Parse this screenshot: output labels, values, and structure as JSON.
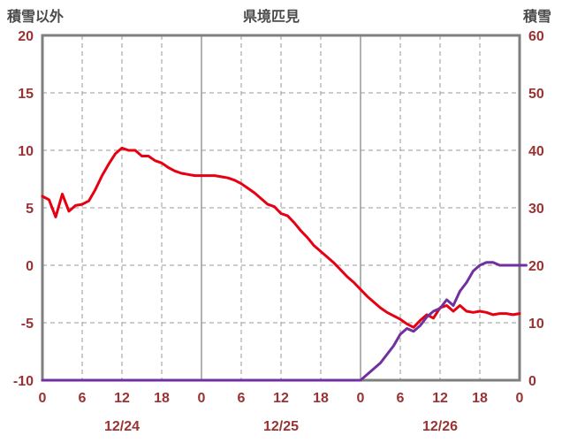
{
  "header": {
    "left_axis_title": "積雪以外",
    "chart_title": "県境匹見",
    "right_axis_title": "積雪"
  },
  "chart_data": {
    "type": "line",
    "title": "県境匹見",
    "x_hours_max": 72,
    "x_tick_step": 6,
    "x_tick_labels": [
      "0",
      "6",
      "12",
      "18",
      "0",
      "6",
      "12",
      "18",
      "0",
      "6",
      "12",
      "18",
      "0"
    ],
    "date_labels": [
      {
        "label": "12/24",
        "center_hour": 12
      },
      {
        "label": "12/25",
        "center_hour": 36
      },
      {
        "label": "12/26",
        "center_hour": 60
      }
    ],
    "left_axis": {
      "title": "積雪以外",
      "min": -10,
      "max": 20,
      "ticks": [
        20,
        15,
        10,
        5,
        0,
        -5,
        -10
      ]
    },
    "right_axis": {
      "title": "積雪",
      "min": 0,
      "max": 60,
      "ticks": [
        60,
        50,
        40,
        30,
        20,
        10,
        0
      ]
    },
    "grid": {
      "color": "#999999",
      "dash": "5 4",
      "solid_at_hours": [
        24,
        48
      ]
    },
    "border_color": "#7f7f7f",
    "tick_color": "#993333",
    "series": [
      {
        "name": "temperature",
        "label": "積雪以外",
        "axis": "left",
        "color": "#e60012",
        "values": [
          6.0,
          5.7,
          4.2,
          6.2,
          4.7,
          5.2,
          5.3,
          5.6,
          6.6,
          7.8,
          8.8,
          9.7,
          10.2,
          10.0,
          10.0,
          9.5,
          9.5,
          9.1,
          8.9,
          8.5,
          8.2,
          8.0,
          7.9,
          7.8,
          7.8,
          7.8,
          7.8,
          7.7,
          7.6,
          7.4,
          7.1,
          6.7,
          6.3,
          5.8,
          5.3,
          5.1,
          4.5,
          4.3,
          3.7,
          3.0,
          2.4,
          1.7,
          1.2,
          0.7,
          0.2,
          -0.4,
          -1.0,
          -1.5,
          -2.1,
          -2.7,
          -3.2,
          -3.7,
          -4.1,
          -4.4,
          -4.7,
          -5.1,
          -5.4,
          -4.8,
          -4.3,
          -4.6,
          -3.7,
          -3.5,
          -4.0,
          -3.5,
          -4.0,
          -4.1,
          -4.0,
          -4.1,
          -4.3,
          -4.2,
          -4.2,
          -4.3,
          -4.2
        ]
      },
      {
        "name": "snow-depth",
        "label": "積雪",
        "axis": "right",
        "color": "#7030a0",
        "values": [
          0,
          0,
          0,
          0,
          0,
          0,
          0,
          0,
          0,
          0,
          0,
          0,
          0,
          0,
          0,
          0,
          0,
          0,
          0,
          0,
          0,
          0,
          0,
          0,
          0,
          0,
          0,
          0,
          0,
          0,
          0,
          0,
          0,
          0,
          0,
          0,
          0,
          0,
          0,
          0,
          0,
          0,
          0,
          0,
          0,
          0,
          0,
          0,
          0,
          1,
          2,
          3,
          4.5,
          6,
          8,
          9,
          8.5,
          9.5,
          11,
          12,
          12.5,
          14,
          13,
          15.5,
          17,
          19,
          20,
          20.5,
          20.5,
          20,
          20,
          20,
          20,
          20
        ]
      }
    ]
  }
}
